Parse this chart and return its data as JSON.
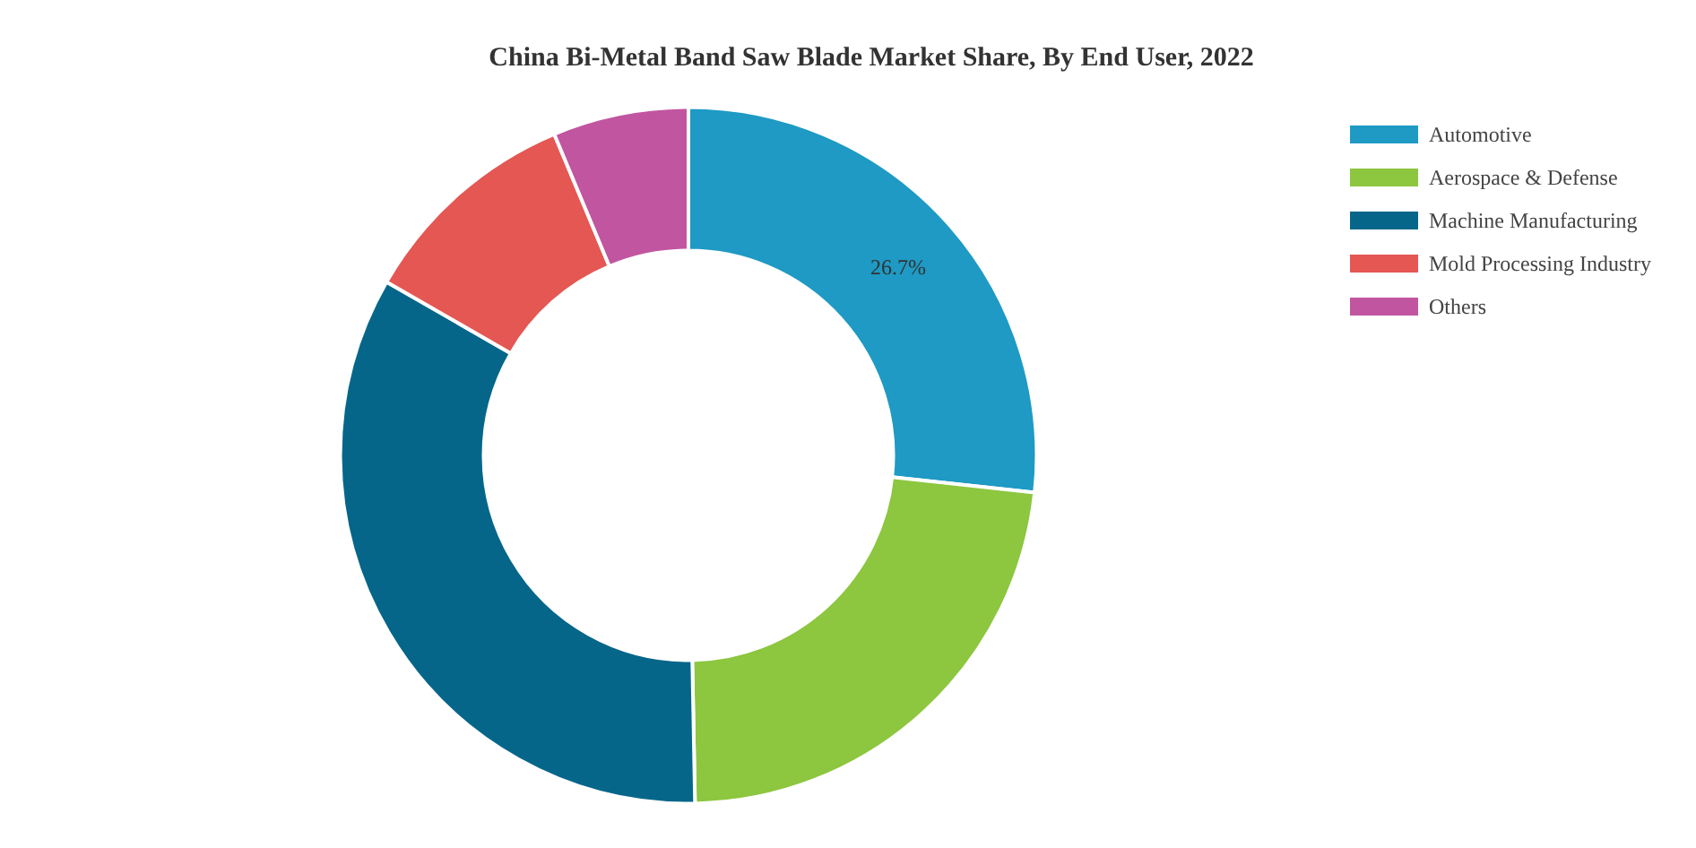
{
  "chart_data": {
    "type": "donut",
    "title": "China Bi-Metal Band Saw Blade Market Share, By End User, 2022",
    "categories": [
      "Automotive",
      "Aerospace & Defense",
      "Machine Manufacturing",
      "Mold Processing Industry",
      "Others"
    ],
    "values": [
      26.7,
      23.0,
      33.6,
      10.4,
      6.3
    ],
    "colors": [
      "#1e9ac4",
      "#8dc63f",
      "#05668a",
      "#e45753",
      "#c155a0"
    ],
    "value_labels": [
      "26.7%",
      null,
      null,
      null,
      null
    ],
    "legend": "top right"
  }
}
